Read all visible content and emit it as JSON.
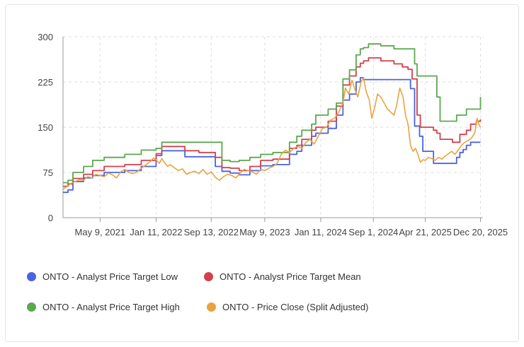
{
  "chart_data": {
    "type": "line",
    "title": "",
    "xlabel": "",
    "ylabel": "",
    "ylim": [
      0,
      300
    ],
    "yticks": [
      0,
      75,
      150,
      225,
      300
    ],
    "xlim": [
      2020.9,
      2026.0
    ],
    "xticks": [
      {
        "label": "May 9, 2021",
        "x": 2021.35
      },
      {
        "label": "Jan 11, 2022",
        "x": 2022.03
      },
      {
        "label": "Sep 13, 2022",
        "x": 2022.7
      },
      {
        "label": "May 9, 2023",
        "x": 2023.35
      },
      {
        "label": "Jan 11, 2024",
        "x": 2024.03
      },
      {
        "label": "Sep 1, 2024",
        "x": 2024.67
      },
      {
        "label": "Apr 21, 2025",
        "x": 2025.3
      },
      {
        "label": "Dec 20, 2025",
        "x": 2025.97
      }
    ],
    "grid": true,
    "legend_position": "bottom",
    "series": [
      {
        "name": "ONTO - Analyst Price Target Low",
        "color": "#4a63e0",
        "step": true,
        "points": [
          [
            2020.9,
            42
          ],
          [
            2020.96,
            46
          ],
          [
            2021.02,
            60
          ],
          [
            2021.15,
            66
          ],
          [
            2021.26,
            70
          ],
          [
            2021.4,
            75
          ],
          [
            2021.65,
            78
          ],
          [
            2021.85,
            85
          ],
          [
            2022.03,
            103
          ],
          [
            2022.1,
            111
          ],
          [
            2022.38,
            101
          ],
          [
            2022.75,
            85
          ],
          [
            2022.83,
            77
          ],
          [
            2022.93,
            74
          ],
          [
            2023.04,
            71
          ],
          [
            2023.17,
            78
          ],
          [
            2023.3,
            86
          ],
          [
            2023.45,
            88
          ],
          [
            2023.65,
            105
          ],
          [
            2023.74,
            110
          ],
          [
            2023.8,
            120
          ],
          [
            2023.92,
            135
          ],
          [
            2023.97,
            140
          ],
          [
            2024.12,
            148
          ],
          [
            2024.22,
            170
          ],
          [
            2024.3,
            195
          ],
          [
            2024.38,
            205
          ],
          [
            2024.46,
            225
          ],
          [
            2024.51,
            232
          ],
          [
            2024.55,
            229
          ],
          [
            2025.02,
            229
          ],
          [
            2025.12,
            214
          ],
          [
            2025.17,
            152
          ],
          [
            2025.23,
            135
          ],
          [
            2025.27,
            110
          ],
          [
            2025.4,
            90
          ],
          [
            2025.63,
            90
          ],
          [
            2025.68,
            100
          ],
          [
            2025.72,
            108
          ],
          [
            2025.76,
            113
          ],
          [
            2025.8,
            120
          ],
          [
            2025.85,
            125
          ],
          [
            2025.97,
            125
          ]
        ]
      },
      {
        "name": "ONTO - Analyst Price Target Mean",
        "color": "#d3404c",
        "step": true,
        "points": [
          [
            2020.9,
            52
          ],
          [
            2020.96,
            56
          ],
          [
            2021.02,
            65
          ],
          [
            2021.15,
            72
          ],
          [
            2021.26,
            78
          ],
          [
            2021.4,
            85
          ],
          [
            2021.65,
            88
          ],
          [
            2021.85,
            95
          ],
          [
            2022.03,
            106
          ],
          [
            2022.1,
            118
          ],
          [
            2022.38,
            111
          ],
          [
            2022.55,
            108
          ],
          [
            2022.75,
            100
          ],
          [
            2022.83,
            83
          ],
          [
            2022.93,
            82
          ],
          [
            2023.04,
            78
          ],
          [
            2023.17,
            85
          ],
          [
            2023.3,
            95
          ],
          [
            2023.45,
            97
          ],
          [
            2023.65,
            115
          ],
          [
            2023.74,
            120
          ],
          [
            2023.8,
            130
          ],
          [
            2023.92,
            145
          ],
          [
            2023.97,
            150
          ],
          [
            2024.12,
            160
          ],
          [
            2024.22,
            185
          ],
          [
            2024.3,
            220
          ],
          [
            2024.38,
            235
          ],
          [
            2024.46,
            250
          ],
          [
            2024.51,
            256
          ],
          [
            2024.55,
            260
          ],
          [
            2024.61,
            265
          ],
          [
            2024.76,
            260
          ],
          [
            2024.92,
            255
          ],
          [
            2025.02,
            250
          ],
          [
            2025.09,
            246
          ],
          [
            2025.14,
            230
          ],
          [
            2025.2,
            170
          ],
          [
            2025.24,
            150
          ],
          [
            2025.4,
            145
          ],
          [
            2025.44,
            140
          ],
          [
            2025.48,
            130
          ],
          [
            2025.63,
            125
          ],
          [
            2025.72,
            138
          ],
          [
            2025.8,
            145
          ],
          [
            2025.85,
            155
          ],
          [
            2025.92,
            160
          ],
          [
            2025.97,
            163
          ]
        ]
      },
      {
        "name": "ONTO - Analyst Price Target High",
        "color": "#5ba84f",
        "step": true,
        "points": [
          [
            2020.9,
            58
          ],
          [
            2020.96,
            62
          ],
          [
            2021.02,
            75
          ],
          [
            2021.15,
            85
          ],
          [
            2021.26,
            95
          ],
          [
            2021.4,
            100
          ],
          [
            2021.65,
            105
          ],
          [
            2021.85,
            112
          ],
          [
            2022.03,
            115
          ],
          [
            2022.1,
            125
          ],
          [
            2022.55,
            125
          ],
          [
            2022.75,
            125
          ],
          [
            2022.83,
            95
          ],
          [
            2022.93,
            93
          ],
          [
            2023.04,
            95
          ],
          [
            2023.17,
            100
          ],
          [
            2023.3,
            105
          ],
          [
            2023.45,
            108
          ],
          [
            2023.65,
            125
          ],
          [
            2023.74,
            135
          ],
          [
            2023.8,
            145
          ],
          [
            2023.92,
            155
          ],
          [
            2023.97,
            170
          ],
          [
            2024.12,
            180
          ],
          [
            2024.22,
            190
          ],
          [
            2024.3,
            230
          ],
          [
            2024.38,
            245
          ],
          [
            2024.46,
            270
          ],
          [
            2024.51,
            280
          ],
          [
            2024.55,
            282
          ],
          [
            2024.61,
            288
          ],
          [
            2024.76,
            285
          ],
          [
            2024.92,
            280
          ],
          [
            2025.02,
            280
          ],
          [
            2025.09,
            280
          ],
          [
            2025.17,
            255
          ],
          [
            2025.2,
            235
          ],
          [
            2025.4,
            235
          ],
          [
            2025.44,
            200
          ],
          [
            2025.48,
            160
          ],
          [
            2025.63,
            160
          ],
          [
            2025.68,
            170
          ],
          [
            2025.8,
            180
          ],
          [
            2025.92,
            180
          ],
          [
            2025.97,
            200
          ]
        ]
      },
      {
        "name": "ONTO - Price Close (Split Adjusted)",
        "color": "#e9a33e",
        "step": false,
        "points": [
          [
            2020.9,
            47
          ],
          [
            2020.95,
            52
          ],
          [
            2021.0,
            57
          ],
          [
            2021.05,
            60
          ],
          [
            2021.1,
            63
          ],
          [
            2021.15,
            62
          ],
          [
            2021.2,
            68
          ],
          [
            2021.25,
            66
          ],
          [
            2021.3,
            72
          ],
          [
            2021.35,
            70
          ],
          [
            2021.4,
            68
          ],
          [
            2021.45,
            74
          ],
          [
            2021.5,
            71
          ],
          [
            2021.55,
            66
          ],
          [
            2021.6,
            76
          ],
          [
            2021.65,
            80
          ],
          [
            2021.7,
            75
          ],
          [
            2021.75,
            73
          ],
          [
            2021.8,
            76
          ],
          [
            2021.85,
            82
          ],
          [
            2021.9,
            87
          ],
          [
            2021.95,
            92
          ],
          [
            2022.0,
            99
          ],
          [
            2022.03,
            96
          ],
          [
            2022.07,
            90
          ],
          [
            2022.1,
            98
          ],
          [
            2022.13,
            92
          ],
          [
            2022.17,
            85
          ],
          [
            2022.2,
            88
          ],
          [
            2022.25,
            83
          ],
          [
            2022.3,
            78
          ],
          [
            2022.35,
            81
          ],
          [
            2022.4,
            72
          ],
          [
            2022.45,
            75
          ],
          [
            2022.5,
            77
          ],
          [
            2022.55,
            73
          ],
          [
            2022.6,
            80
          ],
          [
            2022.65,
            72
          ],
          [
            2022.7,
            76
          ],
          [
            2022.75,
            67
          ],
          [
            2022.8,
            62
          ],
          [
            2022.85,
            68
          ],
          [
            2022.9,
            72
          ],
          [
            2022.95,
            70
          ],
          [
            2023.0,
            66
          ],
          [
            2023.05,
            74
          ],
          [
            2023.1,
            80
          ],
          [
            2023.15,
            78
          ],
          [
            2023.2,
            76
          ],
          [
            2023.25,
            72
          ],
          [
            2023.3,
            80
          ],
          [
            2023.35,
            78
          ],
          [
            2023.4,
            82
          ],
          [
            2023.45,
            85
          ],
          [
            2023.5,
            90
          ],
          [
            2023.55,
            105
          ],
          [
            2023.6,
            112
          ],
          [
            2023.65,
            108
          ],
          [
            2023.7,
            115
          ],
          [
            2023.75,
            118
          ],
          [
            2023.8,
            115
          ],
          [
            2023.85,
            125
          ],
          [
            2023.9,
            130
          ],
          [
            2023.95,
            122
          ],
          [
            2024.0,
            135
          ],
          [
            2024.05,
            148
          ],
          [
            2024.1,
            150
          ],
          [
            2024.15,
            162
          ],
          [
            2024.2,
            165
          ],
          [
            2024.25,
            175
          ],
          [
            2024.3,
            190
          ],
          [
            2024.33,
            215
          ],
          [
            2024.37,
            205
          ],
          [
            2024.41,
            228
          ],
          [
            2024.44,
            215
          ],
          [
            2024.48,
            200
          ],
          [
            2024.52,
            225
          ],
          [
            2024.55,
            232
          ],
          [
            2024.58,
            210
          ],
          [
            2024.62,
            195
          ],
          [
            2024.65,
            165
          ],
          [
            2024.68,
            180
          ],
          [
            2024.72,
            205
          ],
          [
            2024.76,
            200
          ],
          [
            2024.8,
            190
          ],
          [
            2024.84,
            180
          ],
          [
            2024.88,
            175
          ],
          [
            2024.92,
            170
          ],
          [
            2024.95,
            185
          ],
          [
            2024.99,
            215
          ],
          [
            2025.03,
            200
          ],
          [
            2025.06,
            170
          ],
          [
            2025.09,
            155
          ],
          [
            2025.12,
            120
          ],
          [
            2025.15,
            110
          ],
          [
            2025.18,
            115
          ],
          [
            2025.21,
            105
          ],
          [
            2025.24,
            92
          ],
          [
            2025.27,
            96
          ],
          [
            2025.3,
            95
          ],
          [
            2025.34,
            100
          ],
          [
            2025.38,
            98
          ],
          [
            2025.42,
            95
          ],
          [
            2025.46,
            100
          ],
          [
            2025.5,
            97
          ],
          [
            2025.54,
            102
          ],
          [
            2025.58,
            106
          ],
          [
            2025.62,
            110
          ],
          [
            2025.66,
            105
          ],
          [
            2025.7,
            112
          ],
          [
            2025.74,
            120
          ],
          [
            2025.78,
            125
          ],
          [
            2025.82,
            128
          ],
          [
            2025.86,
            132
          ],
          [
            2025.9,
            140
          ],
          [
            2025.93,
            165
          ],
          [
            2025.95,
            155
          ],
          [
            2025.97,
            150
          ]
        ]
      }
    ]
  }
}
